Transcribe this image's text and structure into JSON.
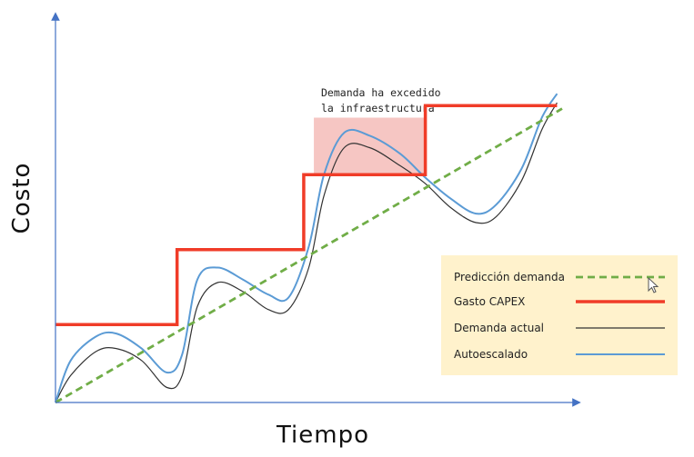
{
  "chart_data": {
    "type": "line",
    "title": "",
    "xlabel": "Tiempo",
    "ylabel": "Costo",
    "xlim": [
      0,
      10
    ],
    "ylim": [
      0,
      10
    ],
    "grid": false,
    "legend_position": "bottom-right",
    "annotation": {
      "lines": [
        "Demanda ha excedido",
        "la infraestructura"
      ],
      "shaded_x": [
        5.1,
        7.3
      ],
      "shaded_y": [
        7.6,
        9.5
      ]
    },
    "series": [
      {
        "name": "Predicción demanda",
        "color": "#70ad47",
        "style": "dashed",
        "x": [
          0,
          10
        ],
        "y": [
          0,
          9.8
        ]
      },
      {
        "name": "Gasto CAPEX",
        "color": "#f03c28",
        "style": "step",
        "x": [
          0,
          2.4,
          2.4,
          4.9,
          4.9,
          7.3,
          7.3,
          9.9
        ],
        "y": [
          2.6,
          2.6,
          5.1,
          5.1,
          7.6,
          7.6,
          9.9,
          9.9
        ]
      },
      {
        "name": "Demanda actual",
        "color": "#333333",
        "style": "solid",
        "x": [
          0,
          0.3,
          0.8,
          1.2,
          1.7,
          2.2,
          2.5,
          2.8,
          3.2,
          3.7,
          4.2,
          4.6,
          5.0,
          5.3,
          5.7,
          6.2,
          6.8,
          7.3,
          7.8,
          8.3,
          8.7,
          9.2,
          9.6,
          9.9
        ],
        "y": [
          0,
          0.9,
          1.7,
          1.8,
          1.4,
          0.5,
          0.9,
          3.2,
          4.0,
          3.7,
          3.1,
          3.1,
          4.5,
          6.9,
          8.5,
          8.5,
          7.9,
          7.3,
          6.5,
          6.0,
          6.2,
          7.4,
          9.1,
          10.0
        ]
      },
      {
        "name": "Autoescalado",
        "color": "#5b9bd5",
        "style": "solid",
        "x": [
          0,
          0.3,
          0.8,
          1.2,
          1.7,
          2.2,
          2.5,
          2.8,
          3.2,
          3.7,
          4.2,
          4.6,
          5.0,
          5.3,
          5.7,
          6.2,
          6.8,
          7.3,
          7.8,
          8.3,
          8.7,
          9.2,
          9.6,
          9.9
        ],
        "y": [
          0,
          1.4,
          2.2,
          2.3,
          1.8,
          1.0,
          1.6,
          4.1,
          4.5,
          4.1,
          3.6,
          3.5,
          5.2,
          7.6,
          9.0,
          8.9,
          8.3,
          7.5,
          6.8,
          6.3,
          6.6,
          7.8,
          9.5,
          10.3
        ]
      }
    ]
  }
}
